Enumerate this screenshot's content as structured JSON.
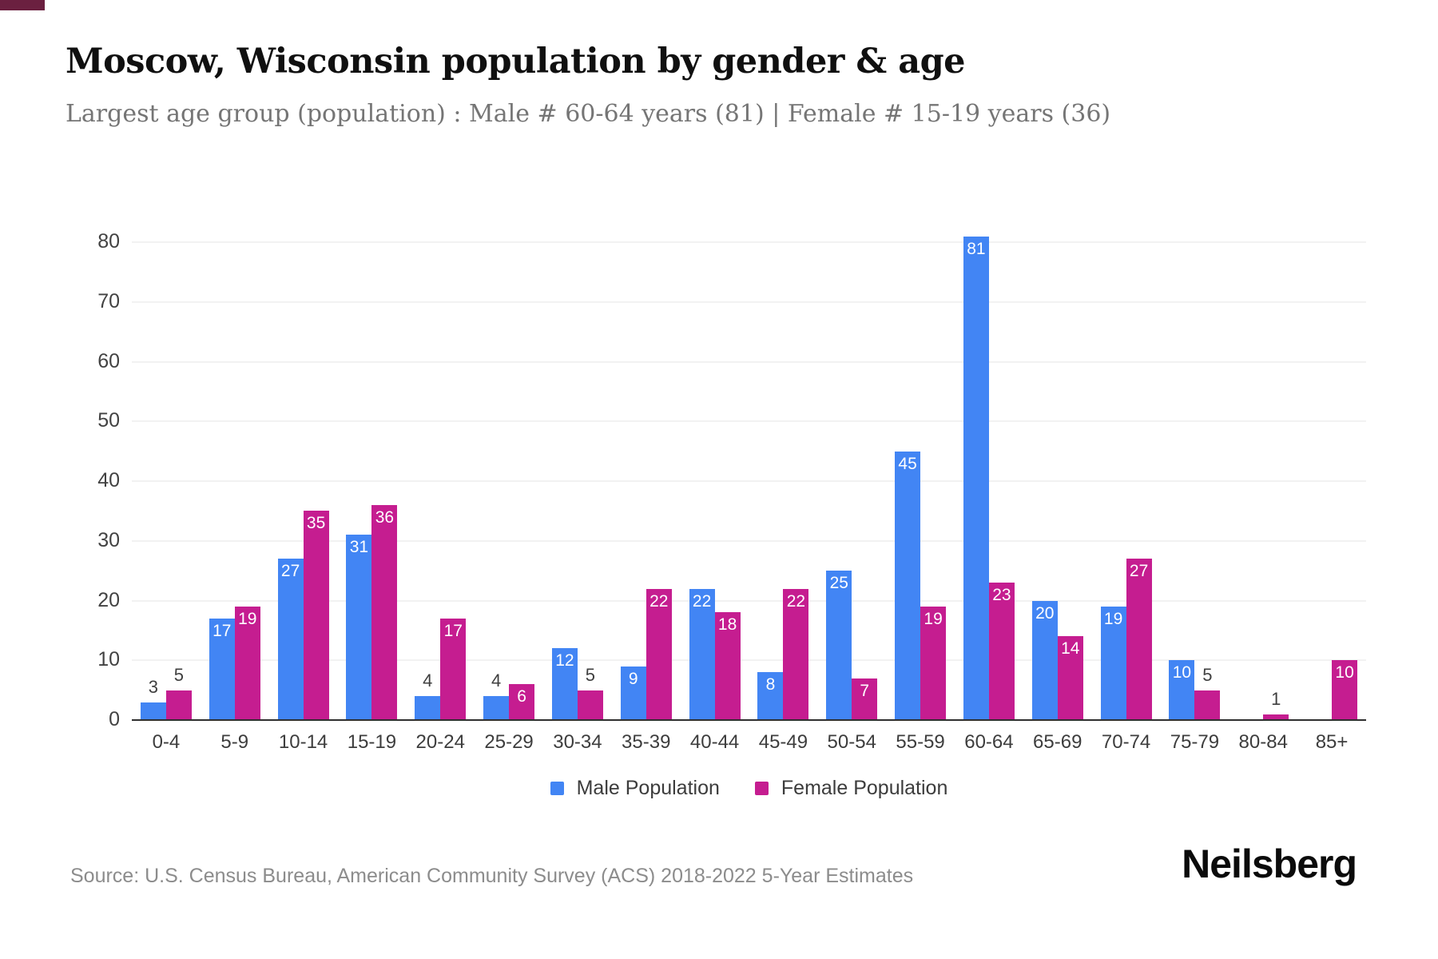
{
  "header": {
    "title": "Moscow, Wisconsin population by gender & age",
    "subtitle": "Largest age group (population) : Male # 60-64 years (81) | Female # 15-19 years (36)"
  },
  "chart_data": {
    "type": "bar",
    "title": "Moscow, Wisconsin population by gender & age",
    "categories": [
      "0-4",
      "5-9",
      "10-14",
      "15-19",
      "20-24",
      "25-29",
      "30-34",
      "35-39",
      "40-44",
      "45-49",
      "50-54",
      "55-59",
      "60-64",
      "65-69",
      "70-74",
      "75-79",
      "80-84",
      "85+"
    ],
    "series": [
      {
        "name": "Male Population",
        "color": "#4285F4",
        "values": [
          3,
          17,
          27,
          31,
          4,
          4,
          12,
          9,
          22,
          8,
          25,
          45,
          81,
          20,
          19,
          10,
          0,
          0
        ]
      },
      {
        "name": "Female Population",
        "color": "#C51D90",
        "values": [
          5,
          19,
          35,
          36,
          17,
          6,
          5,
          22,
          18,
          22,
          7,
          19,
          23,
          14,
          27,
          5,
          1,
          10
        ]
      }
    ],
    "xlabel": "",
    "ylabel": "",
    "ylim": [
      0,
      80
    ],
    "yticks": [
      0,
      10,
      20,
      30,
      40,
      50,
      60,
      70,
      80
    ],
    "grid": "horizontal",
    "legend_position": "bottom",
    "value_labels": "inside-top when value >= 6, above bar when <= 5, hidden when 0"
  },
  "footer": {
    "source": "Source: U.S. Census Bureau, American Community Survey (ACS) 2018-2022 5-Year Estimates",
    "logo": "Neilsberg"
  },
  "colors": {
    "male": "#4285F4",
    "female": "#C51D90",
    "title": "#101010",
    "subtitle": "#757575",
    "grid": "#f2f2f2",
    "baseline": "#2f2f2f",
    "corner_mark": "#6b2040"
  }
}
